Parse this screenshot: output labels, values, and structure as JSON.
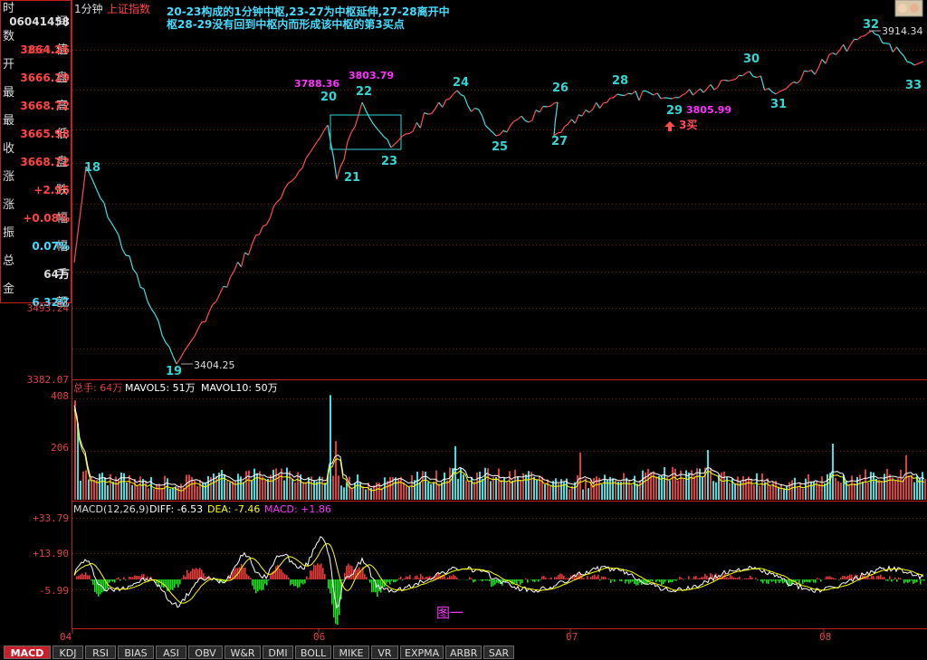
{
  "header": {
    "timeframe": "1分钟",
    "index_name": "上证指数",
    "annotation_line1": "20-23构成的1分钟中枢,23-27为中枢延伸,27-28离开中",
    "annotation_line2": "枢28-29没有回到中枢内而形成该中枢的第3买点"
  },
  "info_panel": {
    "items": [
      {
        "label": "时间",
        "value": "06041458"
      },
      {
        "label": "数值",
        "value": "3864.26"
      },
      {
        "label": "开盘",
        "value": "3666.29"
      },
      {
        "label": "最高",
        "value": "3668.72"
      },
      {
        "label": "最低",
        "value": "3665.98"
      },
      {
        "label": "收盘",
        "value": "3668.72"
      },
      {
        "label": "涨跌",
        "value": "+2.95"
      },
      {
        "label": "涨幅",
        "value": "+0.08%"
      },
      {
        "label": "振幅",
        "value": "0.07%"
      },
      {
        "label": "总手",
        "value": "64万"
      },
      {
        "label": "金额",
        "value": "6.32亿"
      }
    ]
  },
  "volume_header": {
    "total": "总手: 64万",
    "mavol5": "MAVOL5: 51万",
    "mavol10": "MAVOL10: 50万"
  },
  "macd_header": {
    "name": "MACD(12,26,9)",
    "diff": "DIFF: -6.53",
    "dea": "DEA: -7.46",
    "macd": "MACD: +1.86"
  },
  "figure_label": "图一",
  "buy_label": "3买",
  "tabs": [
    "MACD",
    "KDJ",
    "RSI",
    "BIAS",
    "ASI",
    "OBV",
    "W&R",
    "DMI",
    "BOLL",
    "MIKE",
    "VR",
    "EXPMA",
    "ARBR",
    "SAR"
  ],
  "colors": {
    "up": "#ff4d4d",
    "down": "#3fe0e0",
    "pivot_label": "#33d6d6",
    "price_label": "#ff33ff",
    "annotation": "#44ddff",
    "axis": "#c21f1f",
    "diff": "#ffffff",
    "dea": "#ffff00",
    "hist_up": "#e33b3b",
    "hist_down": "#22dd22"
  },
  "chart_data": [
    {
      "type": "line",
      "name": "price",
      "y_tick_labels": [
        "3864.26",
        "3493.24",
        "3382.07"
      ],
      "ylim": [
        3382.07,
        3864.26
      ],
      "x_tick_labels": [
        "04",
        "06",
        "07",
        "08"
      ],
      "pivots": [
        {
          "label": "18",
          "value": 3680
        },
        {
          "label": "19",
          "value": 3404.25
        },
        {
          "label": "20",
          "value": 3788.36
        },
        {
          "label": "21",
          "value": 3685
        },
        {
          "label": "22",
          "value": 3803.79
        },
        {
          "label": "23",
          "value": 3740
        },
        {
          "label": "24",
          "value": 3828
        },
        {
          "label": "25",
          "value": 3745
        },
        {
          "label": "26",
          "value": 3820
        },
        {
          "label": "27",
          "value": 3752
        },
        {
          "label": "28",
          "value": 3832
        },
        {
          "label": "29",
          "value": 3805.99
        },
        {
          "label": "30",
          "value": 3860
        },
        {
          "label": "31",
          "value": 3820
        },
        {
          "label": "32",
          "value": 3914.34
        },
        {
          "label": "33",
          "value": 3855
        }
      ],
      "price_callouts": [
        "3788.36",
        "3803.79",
        "3805.99",
        "3404.25",
        "3914.34"
      ]
    },
    {
      "type": "bar",
      "name": "volume",
      "y_tick_labels": [
        "408",
        "206"
      ],
      "ylim": [
        0,
        408
      ]
    },
    {
      "type": "line",
      "name": "MACD",
      "y_tick_labels": [
        "+33.79",
        "+13.90",
        "-5.99"
      ],
      "series": [
        {
          "name": "DIFF"
        },
        {
          "name": "DEA"
        },
        {
          "name": "MACD"
        }
      ]
    }
  ]
}
